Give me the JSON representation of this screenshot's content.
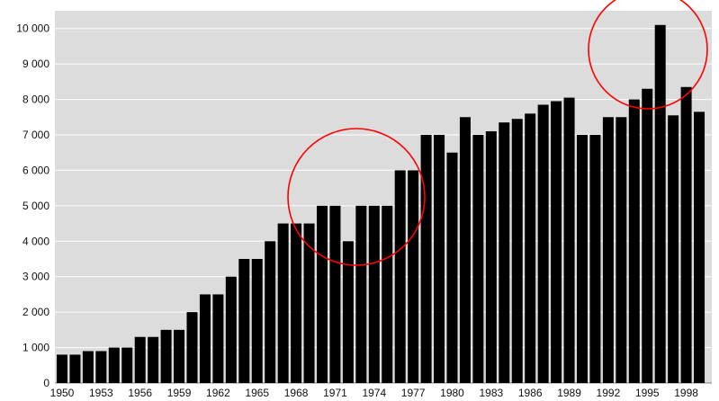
{
  "chart_data": {
    "type": "bar",
    "title": "",
    "xlabel": "",
    "ylabel": "",
    "ylim": [
      0,
      10500
    ],
    "grid": true,
    "y_ticks": [
      0,
      1000,
      2000,
      3000,
      4000,
      5000,
      6000,
      7000,
      8000,
      9000,
      10000
    ],
    "y_tick_labels": [
      "0",
      "1 000",
      "2 000",
      "3 000",
      "4 000",
      "5 000",
      "6 000",
      "7 000",
      "8 000",
      "9 000",
      "10 000"
    ],
    "x_tick_labels": [
      "1950",
      "1953",
      "1956",
      "1959",
      "1962",
      "1965",
      "1968",
      "1971",
      "1974",
      "1977",
      "1980",
      "1983",
      "1986",
      "1989",
      "1992",
      "1995",
      "1998"
    ],
    "categories": [
      "1950",
      "1951",
      "1952",
      "1953",
      "1954",
      "1955",
      "1956",
      "1957",
      "1958",
      "1959",
      "1960",
      "1961",
      "1962",
      "1963",
      "1964",
      "1965",
      "1966",
      "1967",
      "1968",
      "1969",
      "1970",
      "1971",
      "1972",
      "1973",
      "1974",
      "1975",
      "1976",
      "1977",
      "1978",
      "1979",
      "1980",
      "1981",
      "1982",
      "1983",
      "1984",
      "1985",
      "1986",
      "1987",
      "1988",
      "1989",
      "1990",
      "1991",
      "1992",
      "1993",
      "1994",
      "1995",
      "1996",
      "1997",
      "1998",
      "1999"
    ],
    "values": [
      800,
      800,
      900,
      900,
      1000,
      1000,
      1300,
      1300,
      1500,
      1500,
      2000,
      2500,
      2500,
      3000,
      3500,
      3500,
      4000,
      4500,
      4500,
      4500,
      5000,
      5000,
      4000,
      5000,
      5000,
      5000,
      6000,
      6000,
      7000,
      7000,
      6500,
      7500,
      7000,
      7100,
      7350,
      7450,
      7600,
      7850,
      7950,
      8050,
      7000,
      7000,
      7500,
      7500,
      8000,
      8300,
      10100,
      7550,
      8350,
      7650
    ],
    "bar_color": "#000000",
    "plot_background": "#dcdcdc",
    "grid_color": "#ffffff",
    "annotations": [
      {
        "type": "circle",
        "color": "#ff0000",
        "around": [
          "1972",
          "1973",
          "1974",
          "1975",
          "1976"
        ]
      },
      {
        "type": "circle",
        "color": "#ff0000",
        "around": [
          "1995",
          "1996"
        ]
      }
    ]
  }
}
